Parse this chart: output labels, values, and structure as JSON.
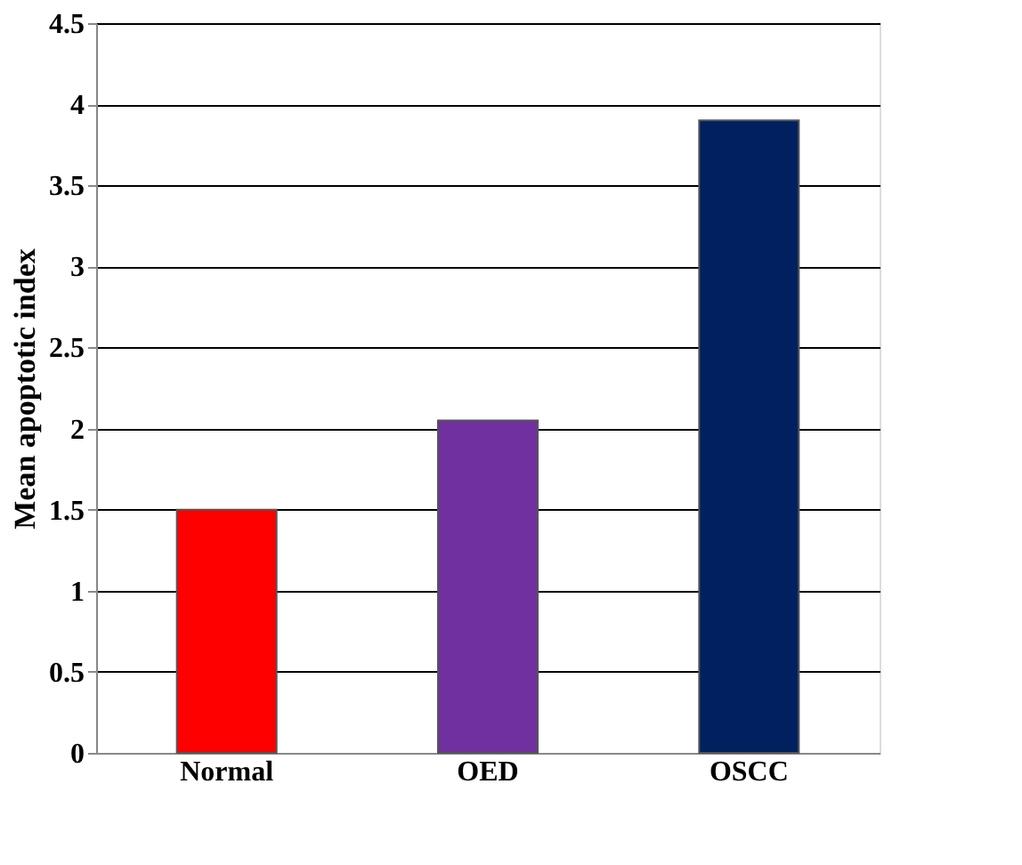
{
  "chart_data": {
    "type": "bar",
    "ylabel": "Mean apoptotic index",
    "categories": [
      "Normal",
      "OED",
      "OSCC"
    ],
    "values": [
      1.5,
      2.05,
      3.9
    ],
    "colors": [
      "#ff0000",
      "#7030a0",
      "#002060"
    ],
    "ylim": [
      0,
      4.5
    ],
    "yticks": [
      0,
      0.5,
      1,
      1.5,
      2,
      2.5,
      3,
      3.5,
      4,
      4.5
    ],
    "grid": "y"
  }
}
